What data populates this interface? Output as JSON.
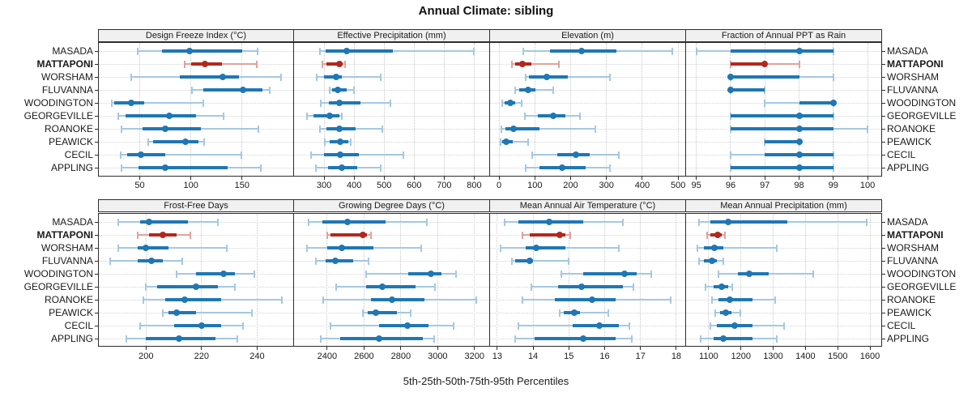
{
  "title": "Annual Climate: sibling",
  "caption": "5th-25th-50th-75th-95th Percentiles",
  "highlight_site": "MATTAPONI",
  "colors": {
    "series_main": "#1f77b4",
    "series_light": "#a5c8e1",
    "highlight_main": "#b2281f",
    "highlight_light": "#dfa39c",
    "strip_bg": "#f0f0f0",
    "panel_border": "#2e2e2e",
    "grid": "#cccccc"
  },
  "chart_data": {
    "type": "dot-interval",
    "percentiles": [
      5,
      25,
      50,
      75,
      95
    ],
    "layout": {
      "rows": 2,
      "cols": 4,
      "grid": "dotted",
      "labels_both_sides": true
    },
    "categories": [
      "MASADA",
      "MATTAPONI",
      "WORSHAM",
      "FLUVANNA",
      "WOODINGTON",
      "GEORGEVILLE",
      "ROANOKE",
      "PEAWICK",
      "CECIL",
      "APPLING"
    ],
    "panels": [
      {
        "title": "Design Freeze Index (°C)",
        "ticks": [
          50,
          100,
          150
        ],
        "xlim": [
          10,
          200
        ],
        "series": [
          {
            "name": "MASADA",
            "values": [
              48,
              72,
              99,
              150,
              165
            ]
          },
          {
            "name": "MATTAPONI",
            "values": [
              94,
              100,
              114,
              130,
              164
            ]
          },
          {
            "name": "WORSHAM",
            "values": [
              42,
              89,
              131,
              147,
              188
            ]
          },
          {
            "name": "FLUVANNA",
            "values": [
              101,
              112,
              151,
              170,
              177
            ]
          },
          {
            "name": "WOODINGTON",
            "values": [
              23,
              25,
              42,
              54,
              112
            ]
          },
          {
            "name": "GEORGEVILLE",
            "values": [
              29,
              36,
              79,
              105,
              132
            ]
          },
          {
            "name": "ROANOKE",
            "values": [
              32,
              53,
              75,
              110,
              166
            ]
          },
          {
            "name": "PEAWICK",
            "values": [
              58,
              63,
              95,
              107,
              113
            ]
          },
          {
            "name": "CECIL",
            "values": [
              31,
              38,
              51,
              75,
              149
            ]
          },
          {
            "name": "APPLING",
            "values": [
              32,
              49,
              75,
              136,
              168
            ]
          }
        ]
      },
      {
        "title": "Effective Precipitation (mm)",
        "ticks": [
          300,
          400,
          500,
          600,
          700,
          800
        ],
        "xlim": [
          200,
          850
        ],
        "series": [
          {
            "name": "MASADA",
            "values": [
              287,
              305,
              375,
              530,
              800
            ]
          },
          {
            "name": "MATTAPONI",
            "values": [
              294,
              308,
              351,
              363,
              371
            ]
          },
          {
            "name": "WORSHAM",
            "values": [
              276,
              300,
              340,
              358,
              489
            ]
          },
          {
            "name": "FLUVANNA",
            "values": [
              318,
              327,
              346,
              375,
              399
            ]
          },
          {
            "name": "WOODINGTON",
            "values": [
              289,
              315,
              351,
              420,
              520
            ]
          },
          {
            "name": "GEORGEVILLE",
            "values": [
              242,
              265,
              320,
              350,
              358
            ]
          },
          {
            "name": "ROANOKE",
            "values": [
              285,
              309,
              351,
              406,
              495
            ]
          },
          {
            "name": "PEAWICK",
            "values": [
              303,
              318,
              355,
              380,
              390
            ]
          },
          {
            "name": "CECIL",
            "values": [
              256,
              300,
              353,
              417,
              564
            ]
          },
          {
            "name": "APPLING",
            "values": [
              272,
              313,
              358,
              411,
              489
            ]
          }
        ]
      },
      {
        "title": "Elevation (m)",
        "ticks": [
          0,
          100,
          200,
          300,
          400,
          500
        ],
        "xlim": [
          -25,
          520
        ],
        "series": [
          {
            "name": "MASADA",
            "values": [
              68,
              143,
              230,
              328,
              484
            ]
          },
          {
            "name": "MATTAPONI",
            "values": [
              36,
              44,
              66,
              90,
              167
            ]
          },
          {
            "name": "WORSHAM",
            "values": [
              75,
              83,
              134,
              192,
              309
            ]
          },
          {
            "name": "FLUVANNA",
            "values": [
              45,
              56,
              81,
              102,
              151
            ]
          },
          {
            "name": "WOODINGTON",
            "values": [
              10,
              15,
              32,
              45,
              64
            ]
          },
          {
            "name": "GEORGEVILLE",
            "values": [
              72,
              109,
              151,
              185,
              226
            ]
          },
          {
            "name": "ROANOKE",
            "values": [
              6,
              19,
              40,
              113,
              268
            ]
          },
          {
            "name": "PEAWICK",
            "values": [
              4,
              8,
              21,
              38,
              81
            ]
          },
          {
            "name": "CECIL",
            "values": [
              93,
              162,
              215,
              253,
              334
            ]
          },
          {
            "name": "APPLING",
            "values": [
              75,
              113,
              177,
              241,
              309
            ]
          }
        ]
      },
      {
        "title": "Fraction of Annual PPT as Rain",
        "ticks": [
          95,
          96,
          97,
          98,
          99,
          100
        ],
        "xlim": [
          94.7,
          100.4
        ],
        "series": [
          {
            "name": "MASADA",
            "values": [
              95,
              96,
              98,
              99,
              99
            ]
          },
          {
            "name": "MATTAPONI",
            "values": [
              96,
              96,
              97,
              97,
              98
            ]
          },
          {
            "name": "WORSHAM",
            "values": [
              96,
              96,
              96,
              98,
              99
            ]
          },
          {
            "name": "FLUVANNA",
            "values": [
              96,
              96,
              96,
              97,
              97
            ]
          },
          {
            "name": "WOODINGTON",
            "values": [
              97,
              98,
              99,
              99,
              99
            ]
          },
          {
            "name": "GEORGEVILLE",
            "values": [
              96,
              96,
              98,
              99,
              99
            ]
          },
          {
            "name": "ROANOKE",
            "values": [
              96,
              96,
              98,
              99,
              100
            ]
          },
          {
            "name": "PEAWICK",
            "values": [
              97,
              97,
              98,
              98,
              98
            ]
          },
          {
            "name": "CECIL",
            "values": [
              96,
              97,
              98,
              99,
              99
            ]
          },
          {
            "name": "APPLING",
            "values": [
              96,
              96,
              98,
              99,
              99
            ]
          }
        ]
      },
      {
        "title": "Frost-Free Days",
        "ticks": [
          200,
          220,
          240
        ],
        "xlim": [
          183,
          253
        ],
        "series": [
          {
            "name": "MASADA",
            "values": [
              190,
              198,
              201,
              215,
              226
            ]
          },
          {
            "name": "MATTAPONI",
            "values": [
              197,
              201,
              206,
              211,
              216
            ]
          },
          {
            "name": "WORSHAM",
            "values": [
              190,
              197,
              200,
              208,
              229
            ]
          },
          {
            "name": "FLUVANNA",
            "values": [
              187,
              197,
              202,
              206,
              213
            ]
          },
          {
            "name": "WOODINGTON",
            "values": [
              211,
              218,
              228,
              232,
              239
            ]
          },
          {
            "name": "GEORGEVILLE",
            "values": [
              200,
              204,
              218,
              226,
              232
            ]
          },
          {
            "name": "ROANOKE",
            "values": [
              199,
              207,
              214,
              227,
              249
            ]
          },
          {
            "name": "PEAWICK",
            "values": [
              206,
              208,
              211,
              218,
              238
            ]
          },
          {
            "name": "CECIL",
            "values": [
              198,
              210,
              220,
              227,
              235
            ]
          },
          {
            "name": "APPLING",
            "values": [
              193,
              200,
              212,
              225,
              233
            ]
          }
        ]
      },
      {
        "title": "Growing Degree Days (°C)",
        "ticks": [
          2400,
          2600,
          2800,
          3000,
          3200
        ],
        "xlim": [
          2220,
          3280
        ],
        "series": [
          {
            "name": "MASADA",
            "values": [
              2300,
              2375,
              2510,
              2715,
              2940
            ]
          },
          {
            "name": "MATTAPONI",
            "values": [
              2400,
              2420,
              2595,
              2615,
              2640
            ]
          },
          {
            "name": "WORSHAM",
            "values": [
              2290,
              2400,
              2480,
              2650,
              2910
            ]
          },
          {
            "name": "FLUVANNA",
            "values": [
              2340,
              2390,
              2445,
              2540,
              2625
            ]
          },
          {
            "name": "WOODINGTON",
            "values": [
              2610,
              2840,
              2965,
              3020,
              3100
            ]
          },
          {
            "name": "GEORGEVILLE",
            "values": [
              2450,
              2610,
              2700,
              2880,
              2985
            ]
          },
          {
            "name": "ROANOKE",
            "values": [
              2380,
              2640,
              2750,
              2930,
              3210
            ]
          },
          {
            "name": "PEAWICK",
            "values": [
              2595,
              2620,
              2665,
              2780,
              2855
            ]
          },
          {
            "name": "CECIL",
            "values": [
              2420,
              2680,
              2835,
              2950,
              3085
            ]
          },
          {
            "name": "APPLING",
            "values": [
              2365,
              2470,
              2680,
              2920,
              2980
            ]
          }
        ]
      },
      {
        "title": "Mean Annual Air Temperature (°C)",
        "ticks": [
          13,
          14,
          15,
          16,
          17,
          18
        ],
        "xlim": [
          12.8,
          18.25
        ],
        "series": [
          {
            "name": "MASADA",
            "values": [
              13.2,
              13.6,
              14.45,
              15.4,
              16.5
            ]
          },
          {
            "name": "MATTAPONI",
            "values": [
              13.7,
              13.9,
              14.75,
              14.9,
              15.05
            ]
          },
          {
            "name": "WORSHAM",
            "values": [
              13.1,
              13.8,
              14.1,
              14.9,
              16.4
            ]
          },
          {
            "name": "FLUVANNA",
            "values": [
              13.4,
              13.5,
              13.9,
              14.0,
              15.0
            ]
          },
          {
            "name": "WOODINGTON",
            "values": [
              14.8,
              15.4,
              16.55,
              16.9,
              17.3
            ]
          },
          {
            "name": "GEORGEVILLE",
            "values": [
              13.95,
              14.7,
              15.35,
              16.5,
              16.8
            ]
          },
          {
            "name": "ROANOKE",
            "values": [
              13.7,
              14.6,
              15.65,
              16.3,
              17.85
            ]
          },
          {
            "name": "PEAWICK",
            "values": [
              14.75,
              14.85,
              15.15,
              15.3,
              16.1
            ]
          },
          {
            "name": "CECIL",
            "values": [
              13.6,
              15.1,
              15.85,
              16.4,
              16.7
            ]
          },
          {
            "name": "APPLING",
            "values": [
              13.5,
              14.05,
              15.4,
              16.3,
              16.75
            ]
          }
        ]
      },
      {
        "title": "Mean Annual Precipitation (mm)",
        "ticks": [
          1100,
          1200,
          1300,
          1400,
          1500,
          1600
        ],
        "xlim": [
          1030,
          1635
        ],
        "series": [
          {
            "name": "MASADA",
            "values": [
              1070,
              1105,
              1160,
              1345,
              1590
            ]
          },
          {
            "name": "MATTAPONI",
            "values": [
              1095,
              1105,
              1127,
              1140,
              1150
            ]
          },
          {
            "name": "WORSHAM",
            "values": [
              1065,
              1085,
              1117,
              1145,
              1310
            ]
          },
          {
            "name": "FLUVANNA",
            "values": [
              1070,
              1085,
              1110,
              1125,
              1145
            ]
          },
          {
            "name": "WOODINGTON",
            "values": [
              1130,
              1190,
              1226,
              1285,
              1425
            ]
          },
          {
            "name": "GEORGEVILLE",
            "values": [
              1090,
              1115,
              1141,
              1160,
              1172
            ]
          },
          {
            "name": "ROANOKE",
            "values": [
              1110,
              1130,
              1165,
              1235,
              1305
            ]
          },
          {
            "name": "PEAWICK",
            "values": [
              1120,
              1135,
              1153,
              1170,
              1197
            ]
          },
          {
            "name": "CECIL",
            "values": [
              1105,
              1125,
              1180,
              1235,
              1335
            ]
          },
          {
            "name": "APPLING",
            "values": [
              1075,
              1115,
              1145,
              1235,
              1310
            ]
          }
        ]
      }
    ]
  }
}
